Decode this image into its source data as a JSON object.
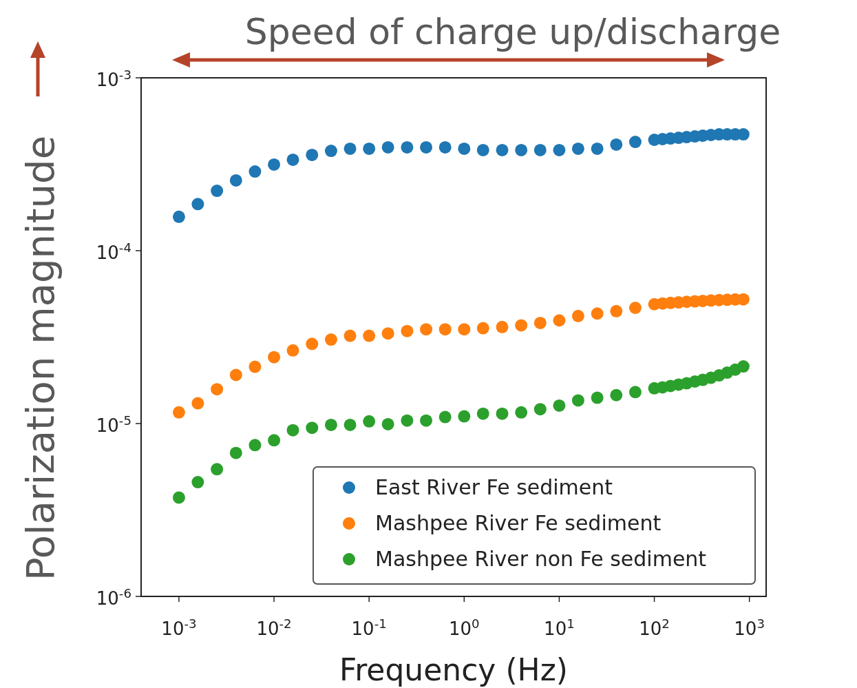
{
  "chart_data": {
    "type": "scatter",
    "xlabel": "Frequency (Hz)",
    "ylabel": "Polarization magnitude",
    "annotations": [
      "Speed of charge up/discharge"
    ],
    "x": [
      0.001,
      0.00158,
      0.00251,
      0.00398,
      0.00631,
      0.01,
      0.0158,
      0.0251,
      0.0398,
      0.0631,
      0.1,
      0.158,
      0.251,
      0.398,
      0.631,
      1,
      1.58,
      2.51,
      3.98,
      6.31,
      10,
      15.8,
      25.1,
      39.8,
      63.1,
      100,
      122,
      148,
      180,
      219,
      267,
      324,
      394,
      480,
      584,
      710,
      864
    ],
    "series": [
      {
        "name": "East River Fe sediment",
        "color": "#1f77b4",
        "values": [
          0.000157,
          0.000186,
          0.000222,
          0.000255,
          0.000287,
          0.000315,
          0.000336,
          0.000358,
          0.000378,
          0.000389,
          0.000389,
          0.000396,
          0.000396,
          0.000396,
          0.000396,
          0.000389,
          0.000382,
          0.000382,
          0.000382,
          0.000382,
          0.000382,
          0.000389,
          0.000389,
          0.000411,
          0.000426,
          0.000438,
          0.000442,
          0.000446,
          0.00045,
          0.000454,
          0.000458,
          0.000463,
          0.000467,
          0.000471,
          0.000471,
          0.000471,
          0.000471
        ]
      },
      {
        "name": "Mashpee River Fe sediment",
        "color": "#ff7f0e",
        "values": [
          1.16e-05,
          1.31e-05,
          1.58e-05,
          1.91e-05,
          2.13e-05,
          2.42e-05,
          2.65e-05,
          2.89e-05,
          3.06e-05,
          3.22e-05,
          3.22e-05,
          3.32e-05,
          3.43e-05,
          3.51e-05,
          3.51e-05,
          3.51e-05,
          3.56e-05,
          3.62e-05,
          3.7e-05,
          3.82e-05,
          3.95e-05,
          4.19e-05,
          4.33e-05,
          4.47e-05,
          4.67e-05,
          4.9e-05,
          4.95e-05,
          4.99e-05,
          5.02e-05,
          5.06e-05,
          5.09e-05,
          5.12e-05,
          5.15e-05,
          5.18e-05,
          5.2e-05,
          5.22e-05,
          5.23e-05
        ]
      },
      {
        "name": "Mashpee River non Fe sediment",
        "color": "#2ca02c",
        "values": [
          3.73e-06,
          4.58e-06,
          5.44e-06,
          6.76e-06,
          7.5e-06,
          8e-06,
          9.15e-06,
          9.45e-06,
          9.82e-06,
          9.82e-06,
          1.03e-05,
          9.91e-06,
          1.04e-05,
          1.04e-05,
          1.09e-05,
          1.1e-05,
          1.14e-05,
          1.14e-05,
          1.16e-05,
          1.21e-05,
          1.27e-05,
          1.36e-05,
          1.41e-05,
          1.46e-05,
          1.52e-05,
          1.6e-05,
          1.62e-05,
          1.65e-05,
          1.68e-05,
          1.71e-05,
          1.75e-05,
          1.79e-05,
          1.84e-05,
          1.9e-05,
          1.97e-05,
          2.05e-05,
          2.14e-05
        ]
      }
    ],
    "log": "xy",
    "xlim": [
      0.0004,
      1500
    ],
    "xticks": [
      {
        "value": 0.001,
        "label": "10$^{-3}$"
      },
      {
        "value": 0.01,
        "label": "10$^{-2}$"
      },
      {
        "value": 0.1,
        "label": "10$^{-1}$"
      },
      {
        "value": 1,
        "label": "10$^{0}$"
      },
      {
        "value": 10,
        "label": "10$^{1}$"
      },
      {
        "value": 100,
        "label": "10$^{2}$"
      },
      {
        "value": 1000,
        "label": "10$^{3}$"
      }
    ],
    "ylim": [
      1e-06,
      0.001
    ],
    "yticks": [
      {
        "value": 1e-06,
        "label": "10$^{-6}$"
      },
      {
        "value": 1e-05,
        "label": "10$^{-5}$"
      },
      {
        "value": 0.0001,
        "label": "10$^{-4}$"
      },
      {
        "value": 0.001,
        "label": "10$^{-3}$"
      }
    ],
    "marker": "circle",
    "legend": "bottom right",
    "grid": false
  }
}
